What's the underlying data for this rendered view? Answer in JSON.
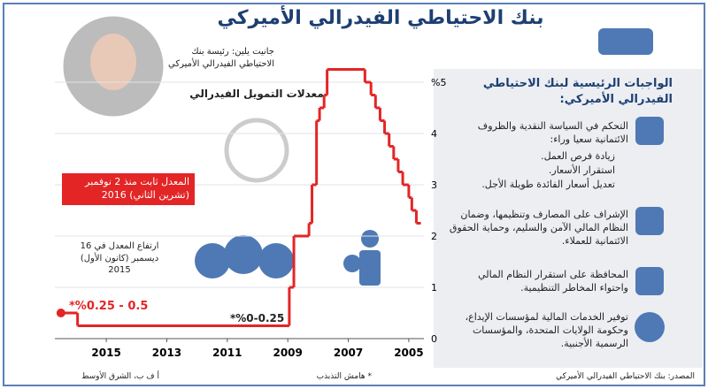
{
  "header": {
    "title": "بنك الاحتياطي الفيدرالي الأميركي"
  },
  "person": {
    "caption": "جانيت يلين: رئيسة بنك الاحتياطي الفيدرالي الأميركي"
  },
  "chart_data": {
    "type": "line",
    "title": "معدلات التمويل الفيدرالي",
    "step": true,
    "grid": true,
    "x": [
      2004.6,
      2004.75,
      2004.9,
      2005.0,
      2005.2,
      2005.35,
      2005.5,
      2005.65,
      2005.8,
      2005.95,
      2006.1,
      2006.25,
      2006.45,
      2007.7,
      2007.8,
      2007.95,
      2008.05,
      2008.2,
      2008.3,
      2008.8,
      2008.95,
      2015.95,
      2016.5
    ],
    "series": [
      {
        "color": "#e32526",
        "values": [
          2.25,
          2.5,
          2.75,
          3.0,
          3.25,
          3.5,
          3.75,
          4.0,
          4.25,
          4.5,
          4.75,
          5.0,
          5.25,
          4.75,
          4.5,
          4.25,
          3.0,
          2.25,
          2.0,
          1.0,
          0.25,
          0.5,
          0.5
        ]
      }
    ],
    "xlim": [
      2016.7,
      2004.5
    ],
    "xticks": [
      2005,
      2007,
      2009,
      2011,
      2013,
      2015
    ],
    "ylim": [
      0,
      5.5
    ],
    "yticks": [
      0,
      1,
      2,
      3,
      4,
      {
        "value": 5,
        "label": "%5"
      }
    ],
    "annotations": [
      "المعدل ثابت منذ 2 نوفمبر (تشرين الثاني) 2016",
      "ارتفاع المعدل في 16 ديسمبر (كانون الأول) 2015",
      "*%0.25 - 0.5",
      "*%0-0.25"
    ]
  },
  "panel": {
    "title": "الواجبات الرئيسية لبنك الاحتياطي الفيدرالي الأميركي:",
    "items": [
      {
        "text": "التحكم في السياسة النقدية والظروف الائتمانية سعيا وراء:",
        "bullets": [
          "زيادة فرص العمل.",
          "استقرار الأسعار.",
          "تعديل أسعار الفائدة طويلة الأجل."
        ]
      },
      {
        "text": "الإشراف على المصارف وتنظيمها، وضمان النظام المالي الآمن والسليم، وحماية الحقوق الائتمانية للعملاء."
      },
      {
        "text": "المحافظة على استقرار النظام المالي واحتواء المخاطر التنظيمية."
      },
      {
        "text": "توفير الخدمات المالية لمؤسسات الإيداع، وحكومة الولايات المتحدة، والمؤسسات الرسمية الأجنبية."
      }
    ]
  },
  "footer": {
    "source": "المصدر: بنك الاحتياطي الفيدرالي الأميركي",
    "note": "* هامش التذبذب",
    "credit": "أ ف ب، الشرق الأوسط"
  }
}
